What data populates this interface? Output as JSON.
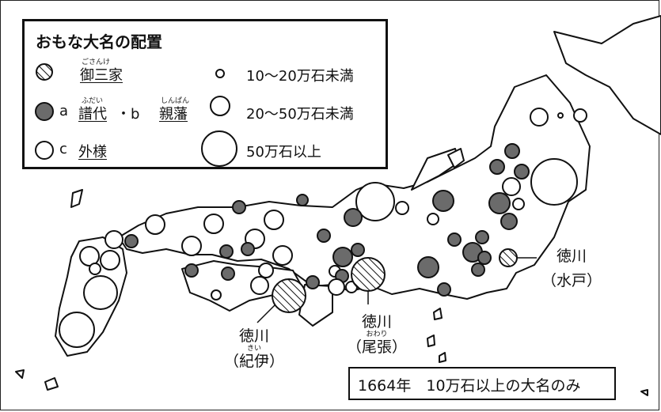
{
  "legend": {
    "title": "おもな大名の配置",
    "gosanke": {
      "label": "御三家",
      "ruby": "ごさんけ"
    },
    "ab": {
      "prefix_a": "a",
      "fudai": "譜代",
      "fudai_ruby": "ふだい",
      "dot": "・b",
      "shinpan": "親藩",
      "shinpan_ruby": "しんぱん"
    },
    "c": {
      "prefix": "c",
      "label": "外様"
    },
    "sizes": [
      "10〜20万石未満",
      "20〜50万石未満",
      "50万石以上"
    ]
  },
  "callouts": {
    "mito": {
      "name": "徳川",
      "place": "（水戸）"
    },
    "owari": {
      "name": "徳川",
      "place": "（尾張）",
      "ruby": "おわり"
    },
    "kii": {
      "name": "徳川",
      "place": "（紀伊）",
      "ruby": "きい"
    }
  },
  "note": "1664年　10万石以上の大名のみ",
  "colors": {
    "fudai_fill": "#6b6b6b",
    "outline": "#111111",
    "land": "#ffffff"
  }
}
